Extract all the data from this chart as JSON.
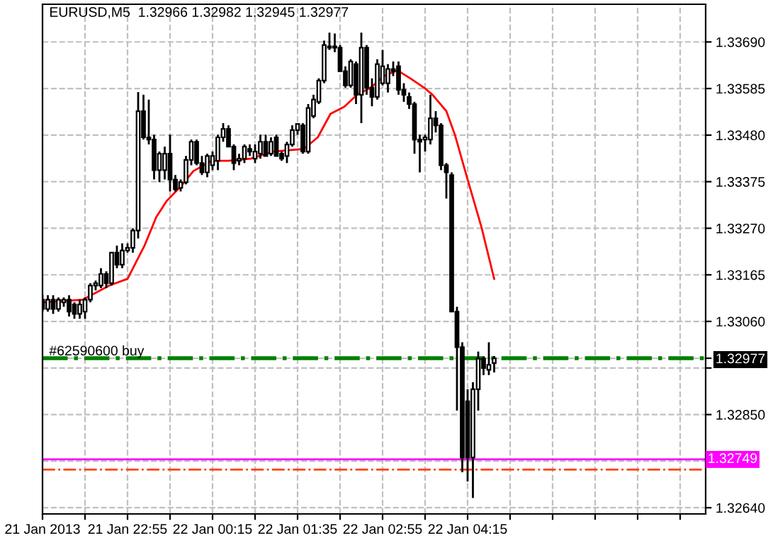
{
  "chart_data": {
    "type": "candlestick",
    "title": "EURUSD,M5  1.32966 1.32982 1.32945 1.32977",
    "x": [
      "2013-01-21T21:35",
      "2013-01-21T21:40",
      "2013-01-21T21:45",
      "2013-01-21T21:50",
      "2013-01-21T21:55",
      "2013-01-21T22:00",
      "2013-01-21T22:05",
      "2013-01-21T22:10",
      "2013-01-21T22:15",
      "2013-01-21T22:20",
      "2013-01-21T22:25",
      "2013-01-21T22:30",
      "2013-01-21T22:35",
      "2013-01-21T22:40",
      "2013-01-21T22:45",
      "2013-01-21T22:50",
      "2013-01-21T22:55",
      "2013-01-21T23:00",
      "2013-01-21T23:05",
      "2013-01-21T23:10",
      "2013-01-21T23:15",
      "2013-01-21T23:20",
      "2013-01-21T23:25",
      "2013-01-21T23:30",
      "2013-01-21T23:35",
      "2013-01-21T23:40",
      "2013-01-21T23:45",
      "2013-01-21T23:50",
      "2013-01-21T23:55",
      "2013-01-22T00:00",
      "2013-01-22T00:05",
      "2013-01-22T00:10",
      "2013-01-22T00:15",
      "2013-01-22T00:20",
      "2013-01-22T00:25",
      "2013-01-22T00:30",
      "2013-01-22T00:35",
      "2013-01-22T00:40",
      "2013-01-22T00:45",
      "2013-01-22T00:50",
      "2013-01-22T00:55",
      "2013-01-22T01:00",
      "2013-01-22T01:05",
      "2013-01-22T01:10",
      "2013-01-22T01:15",
      "2013-01-22T01:20",
      "2013-01-22T01:25",
      "2013-01-22T01:30",
      "2013-01-22T01:35",
      "2013-01-22T01:40",
      "2013-01-22T01:45",
      "2013-01-22T01:50",
      "2013-01-22T01:55",
      "2013-01-22T02:00",
      "2013-01-22T02:05",
      "2013-01-22T02:10",
      "2013-01-22T02:15",
      "2013-01-22T02:20",
      "2013-01-22T02:25",
      "2013-01-22T02:30",
      "2013-01-22T02:35",
      "2013-01-22T02:40",
      "2013-01-22T02:45",
      "2013-01-22T02:50",
      "2013-01-22T02:55",
      "2013-01-22T03:00",
      "2013-01-22T03:05",
      "2013-01-22T03:10",
      "2013-01-22T03:15",
      "2013-01-22T03:20",
      "2013-01-22T03:25",
      "2013-01-22T03:30",
      "2013-01-22T03:35",
      "2013-01-22T03:40",
      "2013-01-22T03:45",
      "2013-01-22T03:50",
      "2013-01-22T03:55",
      "2013-01-22T04:00",
      "2013-01-22T04:05",
      "2013-01-22T04:10",
      "2013-01-22T04:15",
      "2013-01-22T04:20",
      "2013-01-22T04:25",
      "2013-01-22T04:30",
      "2013-01-22T04:35",
      "2013-01-22T04:40"
    ],
    "ohlc": [
      [
        1.33109,
        1.33119,
        1.33082,
        1.33088
      ],
      [
        1.33088,
        1.33119,
        1.33082,
        1.33109
      ],
      [
        1.33109,
        1.33119,
        1.33077,
        1.33088
      ],
      [
        1.33088,
        1.33114,
        1.33082,
        1.33109
      ],
      [
        1.33103,
        1.33114,
        1.33093,
        1.33109
      ],
      [
        1.33109,
        1.33119,
        1.33071,
        1.33082
      ],
      [
        1.33098,
        1.33103,
        1.33066,
        1.33077
      ],
      [
        1.33077,
        1.33109,
        1.33066,
        1.33098
      ],
      [
        1.33082,
        1.33114,
        1.33066,
        1.33109
      ],
      [
        1.33109,
        1.33146,
        1.33103,
        1.33141
      ],
      [
        1.33141,
        1.33152,
        1.3313,
        1.33146
      ],
      [
        1.33141,
        1.3318,
        1.33135,
        1.33167
      ],
      [
        1.33167,
        1.33173,
        1.33135,
        1.33146
      ],
      [
        1.33146,
        1.33215,
        1.33141,
        1.33215
      ],
      [
        1.33215,
        1.33231,
        1.3318,
        1.33188
      ],
      [
        1.33188,
        1.33236,
        1.3318,
        1.3322
      ],
      [
        1.3322,
        1.33236,
        1.33215,
        1.33226
      ],
      [
        1.33226,
        1.3327,
        1.33215,
        1.33265
      ],
      [
        1.33265,
        1.33577,
        1.33247,
        1.33534
      ],
      [
        1.33534,
        1.33571,
        1.3347,
        1.33475
      ],
      [
        1.33475,
        1.3356,
        1.33459,
        1.3347
      ],
      [
        1.3347,
        1.33481,
        1.3338,
        1.33401
      ],
      [
        1.33401,
        1.33443,
        1.33374,
        1.33438
      ],
      [
        1.33401,
        1.33454,
        1.3338,
        1.33438
      ],
      [
        1.33438,
        1.33481,
        1.33353,
        1.3338
      ],
      [
        1.3338,
        1.3339,
        1.33353,
        1.33358
      ],
      [
        1.33361,
        1.3338,
        1.33353,
        1.33374
      ],
      [
        1.33374,
        1.33433,
        1.33369,
        1.33424
      ],
      [
        1.33424,
        1.3347,
        1.33412,
        1.33465
      ],
      [
        1.33465,
        1.3347,
        1.33412,
        1.33417
      ],
      [
        1.33417,
        1.33433,
        1.3339,
        1.33396
      ],
      [
        1.33396,
        1.33438,
        1.33385,
        1.33433
      ],
      [
        1.33412,
        1.33443,
        1.33401,
        1.33433
      ],
      [
        1.33422,
        1.33481,
        1.33401,
        1.33475
      ],
      [
        1.33475,
        1.33507,
        1.33465,
        1.33494
      ],
      [
        1.33494,
        1.33502,
        1.33454,
        1.33454
      ],
      [
        1.33454,
        1.33459,
        1.33401,
        1.33417
      ],
      [
        1.33422,
        1.33438,
        1.33412,
        1.33427
      ],
      [
        1.33427,
        1.33459,
        1.33417,
        1.33454
      ],
      [
        1.33449,
        1.33459,
        1.33433,
        1.33443
      ],
      [
        1.33427,
        1.33459,
        1.33417,
        1.33443
      ],
      [
        1.33438,
        1.33481,
        1.33427,
        1.33465
      ],
      [
        1.33465,
        1.33481,
        1.33433,
        1.33433
      ],
      [
        1.33438,
        1.33475,
        1.33433,
        1.33465
      ],
      [
        1.33475,
        1.33481,
        1.33433,
        1.33433
      ],
      [
        1.33438,
        1.33443,
        1.33422,
        1.33427
      ],
      [
        1.33433,
        1.33465,
        1.33417,
        1.33459
      ],
      [
        1.33459,
        1.33502,
        1.33454,
        1.33491
      ],
      [
        1.33491,
        1.33507,
        1.33481,
        1.33505
      ],
      [
        1.33502,
        1.33507,
        1.33438,
        1.33443
      ],
      [
        1.33443,
        1.3355,
        1.33438,
        1.33541
      ],
      [
        1.33523,
        1.33571,
        1.33518,
        1.3356
      ],
      [
        1.33555,
        1.33608,
        1.3355,
        1.33603
      ],
      [
        1.33603,
        1.33693,
        1.33597,
        1.33683
      ],
      [
        1.33677,
        1.33711,
        1.33672,
        1.3368
      ],
      [
        1.3368,
        1.33709,
        1.33667,
        1.33677
      ],
      [
        1.33677,
        1.33683,
        1.33624,
        1.33624
      ],
      [
        1.33624,
        1.33635,
        1.33587,
        1.33592
      ],
      [
        1.33592,
        1.33651,
        1.33587,
        1.33646
      ],
      [
        1.3364,
        1.33646,
        1.3355,
        1.33571
      ],
      [
        1.33571,
        1.33711,
        1.33507,
        1.33677
      ],
      [
        1.33677,
        1.33683,
        1.33571,
        1.33587
      ],
      [
        1.33587,
        1.33608,
        1.33545,
        1.33566
      ],
      [
        1.33566,
        1.33651,
        1.3356,
        1.3364
      ],
      [
        1.33597,
        1.33672,
        1.33592,
        1.33635
      ],
      [
        1.33597,
        1.3364,
        1.33576,
        1.33629
      ],
      [
        1.33629,
        1.33646,
        1.33613,
        1.33624
      ],
      [
        1.33635,
        1.33646,
        1.33571,
        1.33582
      ],
      [
        1.33582,
        1.33597,
        1.33555,
        1.33571
      ],
      [
        1.33566,
        1.33576,
        1.33539,
        1.3355
      ],
      [
        1.3355,
        1.33555,
        1.33438,
        1.3347
      ],
      [
        1.3347,
        1.33481,
        1.33396,
        1.33465
      ],
      [
        1.3347,
        1.33481,
        1.33443,
        1.33475
      ],
      [
        1.3347,
        1.33571,
        1.33459,
        1.33518
      ],
      [
        1.33518,
        1.33534,
        1.33486,
        1.33502
      ],
      [
        1.33502,
        1.33507,
        1.33401,
        1.33412
      ],
      [
        1.33412,
        1.33417,
        1.33337,
        1.33396
      ],
      [
        1.3339,
        1.33396,
        1.33082,
        1.33082
      ],
      [
        1.33082,
        1.33093,
        1.32859,
        1.33002
      ],
      [
        1.33002,
        1.33013,
        1.3272,
        1.32753
      ],
      [
        1.3288,
        1.32907,
        1.32699,
        1.32753
      ],
      [
        1.32753,
        1.32923,
        1.32662,
        1.32907
      ],
      [
        1.32907,
        1.32992,
        1.32859,
        1.32976
      ],
      [
        1.32976,
        1.32981,
        1.32939,
        1.32955
      ],
      [
        1.32951,
        1.33013,
        1.32939,
        1.32962
      ],
      [
        1.32966,
        1.32982,
        1.32945,
        1.32977
      ]
    ],
    "series": [
      {
        "type": "line",
        "color": "#ff0000",
        "x": [
          "2013-01-21T21:35",
          "2013-01-21T22:13",
          "2013-01-21T22:38",
          "2013-01-21T22:55",
          "2013-01-21T23:11",
          "2013-01-21T23:22",
          "2013-01-21T23:32",
          "2013-01-21T23:45",
          "2013-01-21T23:57",
          "2013-01-22T00:14",
          "2013-01-22T00:30",
          "2013-01-22T00:51",
          "2013-01-22T01:12",
          "2013-01-22T01:41",
          "2013-01-22T01:54",
          "2013-01-22T02:06",
          "2013-01-22T02:19",
          "2013-01-22T02:31",
          "2013-01-22T02:44",
          "2013-01-22T02:56",
          "2013-01-22T03:09",
          "2013-01-22T03:21",
          "2013-01-22T03:34",
          "2013-01-22T03:42",
          "2013-01-22T03:55",
          "2013-01-22T04:03",
          "2013-01-22T04:15",
          "2013-01-22T04:28",
          "2013-01-22T04:40"
        ],
        "values": [
          1.33103,
          1.33109,
          1.33141,
          1.33156,
          1.33231,
          1.33295,
          1.33332,
          1.33364,
          1.33399,
          1.33422,
          1.33422,
          1.33427,
          1.33443,
          1.33449,
          1.33475,
          1.33528,
          1.33544,
          1.33571,
          1.33587,
          1.33613,
          1.33626,
          1.33608,
          1.33587,
          1.33571,
          1.33534,
          1.33481,
          1.3338,
          1.33273,
          1.33156
        ]
      }
    ],
    "xlim": [
      "2013-01-21T21:35",
      "2013-01-22T07:59"
    ],
    "xticks": [
      {
        "value": "2013-01-21T21:35",
        "label": "21 Jan 2013"
      },
      {
        "value": "2013-01-21T22:15",
        "label": null
      },
      {
        "value": "2013-01-21T22:55",
        "label": "21 Jan 22:55"
      },
      {
        "value": "2013-01-21T23:35",
        "label": null
      },
      {
        "value": "2013-01-22T00:15",
        "label": "22 Jan 00:15"
      },
      {
        "value": "2013-01-22T00:55",
        "label": null
      },
      {
        "value": "2013-01-22T01:35",
        "label": "22 Jan 01:35"
      },
      {
        "value": "2013-01-22T02:15",
        "label": null
      },
      {
        "value": "2013-01-22T02:55",
        "label": "22 Jan 02:55"
      },
      {
        "value": "2013-01-22T03:35",
        "label": null
      },
      {
        "value": "2013-01-22T04:15",
        "label": "22 Jan 04:15"
      },
      {
        "value": "2013-01-22T04:55",
        "label": null
      },
      {
        "value": "2013-01-22T05:35",
        "label": null
      },
      {
        "value": "2013-01-22T06:15",
        "label": null
      },
      {
        "value": "2013-01-22T06:55",
        "label": null
      },
      {
        "value": "2013-01-22T07:35",
        "label": null
      }
    ],
    "ylim": [
      1.32626,
      1.33775
    ],
    "yticks": [
      {
        "value": 1.3369,
        "label": "1.33690"
      },
      {
        "value": 1.33585,
        "label": "1.33585"
      },
      {
        "value": 1.3348,
        "label": "1.33480"
      },
      {
        "value": 1.33375,
        "label": "1.33375"
      },
      {
        "value": 1.3327,
        "label": "1.33270"
      },
      {
        "value": 1.33165,
        "label": "1.33165"
      },
      {
        "value": 1.3306,
        "label": "1.33060"
      },
      {
        "value": 1.32955,
        "label": null
      },
      {
        "value": 1.32977,
        "label": "1.32977"
      },
      {
        "value": 1.3285,
        "label": "1.32850"
      },
      {
        "value": 1.32745,
        "label": null
      },
      {
        "value": 1.3264,
        "label": "1.32640"
      }
    ],
    "grid": true,
    "ref_lines": [
      {
        "axis": "y",
        "value": 1.32977,
        "label": "#62590600 buy",
        "color": "#008000",
        "line_style": "dashdot"
      },
      {
        "axis": "y",
        "value": 1.32749,
        "label": "1.32749",
        "color": "#ff00ff",
        "line_style": "solid"
      },
      {
        "axis": "y",
        "value": 1.32726,
        "color": "#ff4500",
        "line_style": "dashdot"
      }
    ]
  }
}
